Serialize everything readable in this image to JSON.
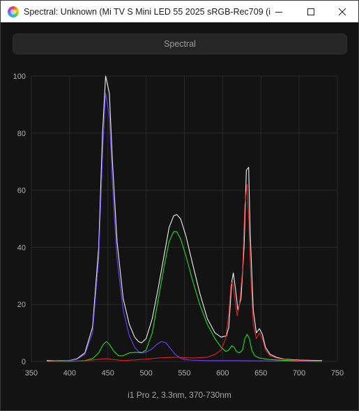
{
  "window": {
    "title": "Spectral: Unknown (Mi TV S Mini LED 55 2025 sRGB-Rec709 (i1..."
  },
  "toolbar": {
    "spectral_label": "Spectral"
  },
  "caption": "i1 Pro 2, 3.3nm, 370-730nm",
  "colors": {
    "white": "#f2f2f2",
    "blue": "#6a40ff",
    "green": "#1ee01e",
    "red": "#e02020",
    "background": "#131313",
    "grid": "#2a2a2a"
  },
  "chart_data": {
    "type": "line",
    "title": "",
    "xlabel": "",
    "ylabel": "",
    "xlim": [
      350,
      750
    ],
    "ylim": [
      0,
      100
    ],
    "x_ticks": [
      350,
      400,
      450,
      500,
      550,
      600,
      650,
      700,
      750
    ],
    "y_ticks": [
      0,
      20,
      40,
      60,
      80,
      100
    ],
    "grid": true,
    "series": [
      {
        "color": "#f2f2f2",
        "points": [
          [
            370,
            0.3
          ],
          [
            380,
            0.2
          ],
          [
            400,
            0.3
          ],
          [
            410,
            1
          ],
          [
            420,
            3
          ],
          [
            430,
            12
          ],
          [
            438,
            40
          ],
          [
            443,
            80
          ],
          [
            447,
            100
          ],
          [
            452,
            94
          ],
          [
            456,
            70
          ],
          [
            462,
            42
          ],
          [
            470,
            22
          ],
          [
            478,
            13
          ],
          [
            485,
            8.5
          ],
          [
            490,
            7
          ],
          [
            494,
            6.5
          ],
          [
            500,
            8
          ],
          [
            508,
            15
          ],
          [
            516,
            26
          ],
          [
            524,
            38
          ],
          [
            530,
            47
          ],
          [
            536,
            51
          ],
          [
            540,
            51.5
          ],
          [
            545,
            50
          ],
          [
            552,
            44
          ],
          [
            560,
            35
          ],
          [
            570,
            24
          ],
          [
            580,
            15
          ],
          [
            590,
            10
          ],
          [
            598,
            8.5
          ],
          [
            605,
            9
          ],
          [
            608,
            12
          ],
          [
            612,
            28
          ],
          [
            614,
            31
          ],
          [
            617,
            25
          ],
          [
            620,
            18
          ],
          [
            624,
            22
          ],
          [
            628,
            40
          ],
          [
            631,
            67
          ],
          [
            634,
            68
          ],
          [
            636,
            45
          ],
          [
            640,
            18
          ],
          [
            644,
            10
          ],
          [
            648,
            11.5
          ],
          [
            652,
            9.5
          ],
          [
            656,
            5
          ],
          [
            662,
            2.5
          ],
          [
            670,
            1.5
          ],
          [
            680,
            0.8
          ],
          [
            700,
            0.5
          ],
          [
            730,
            0.3
          ]
        ]
      },
      {
        "color": "#6a40ff",
        "points": [
          [
            370,
            0
          ],
          [
            400,
            0.2
          ],
          [
            410,
            0.8
          ],
          [
            420,
            2.5
          ],
          [
            430,
            10
          ],
          [
            438,
            36
          ],
          [
            443,
            72
          ],
          [
            447,
            94
          ],
          [
            452,
            86
          ],
          [
            456,
            62
          ],
          [
            462,
            36
          ],
          [
            470,
            18
          ],
          [
            478,
            9
          ],
          [
            485,
            5
          ],
          [
            490,
            3.5
          ],
          [
            496,
            3
          ],
          [
            502,
            3.5
          ],
          [
            508,
            4.5
          ],
          [
            514,
            6
          ],
          [
            520,
            7
          ],
          [
            526,
            6.5
          ],
          [
            532,
            4.5
          ],
          [
            538,
            2.5
          ],
          [
            546,
            1
          ],
          [
            556,
            0.5
          ],
          [
            580,
            0.3
          ],
          [
            620,
            0.3
          ],
          [
            660,
            0.2
          ],
          [
            700,
            0.1
          ],
          [
            730,
            0
          ]
        ]
      },
      {
        "color": "#1ee01e",
        "points": [
          [
            370,
            0
          ],
          [
            400,
            0
          ],
          [
            420,
            0.3
          ],
          [
            430,
            1
          ],
          [
            438,
            3
          ],
          [
            444,
            6
          ],
          [
            448,
            7
          ],
          [
            452,
            6
          ],
          [
            458,
            3.5
          ],
          [
            464,
            2
          ],
          [
            470,
            2
          ],
          [
            478,
            3
          ],
          [
            486,
            3.2
          ],
          [
            494,
            3
          ],
          [
            500,
            4
          ],
          [
            508,
            10
          ],
          [
            516,
            22
          ],
          [
            524,
            34
          ],
          [
            530,
            42
          ],
          [
            536,
            45.5
          ],
          [
            540,
            45.5
          ],
          [
            545,
            43
          ],
          [
            552,
            37
          ],
          [
            560,
            29
          ],
          [
            570,
            20
          ],
          [
            580,
            13
          ],
          [
            590,
            8
          ],
          [
            598,
            5
          ],
          [
            604,
            3.5
          ],
          [
            608,
            4
          ],
          [
            612,
            5.5
          ],
          [
            615,
            5
          ],
          [
            618,
            3.5
          ],
          [
            622,
            3
          ],
          [
            626,
            4
          ],
          [
            629,
            8
          ],
          [
            632,
            9.5
          ],
          [
            635,
            8
          ],
          [
            638,
            4
          ],
          [
            642,
            2
          ],
          [
            648,
            1.2
          ],
          [
            660,
            0.7
          ],
          [
            680,
            0.4
          ],
          [
            700,
            0.2
          ],
          [
            730,
            0
          ]
        ]
      },
      {
        "color": "#e02020",
        "points": [
          [
            370,
            0
          ],
          [
            420,
            0.2
          ],
          [
            440,
            0.8
          ],
          [
            448,
            1
          ],
          [
            456,
            0.7
          ],
          [
            470,
            0.3
          ],
          [
            500,
            0.8
          ],
          [
            520,
            1.3
          ],
          [
            540,
            1.5
          ],
          [
            560,
            1.2
          ],
          [
            580,
            1.5
          ],
          [
            590,
            2.5
          ],
          [
            598,
            4
          ],
          [
            604,
            8
          ],
          [
            608,
            17
          ],
          [
            611,
            27
          ],
          [
            613,
            28
          ],
          [
            616,
            22
          ],
          [
            619,
            16
          ],
          [
            622,
            20
          ],
          [
            626,
            32
          ],
          [
            629,
            55
          ],
          [
            632,
            62
          ],
          [
            634,
            50
          ],
          [
            637,
            28
          ],
          [
            640,
            13
          ],
          [
            644,
            8
          ],
          [
            648,
            10
          ],
          [
            652,
            8
          ],
          [
            656,
            4
          ],
          [
            662,
            2
          ],
          [
            670,
            1.2
          ],
          [
            680,
            0.7
          ],
          [
            700,
            0.3
          ],
          [
            730,
            0.1
          ]
        ]
      }
    ]
  }
}
